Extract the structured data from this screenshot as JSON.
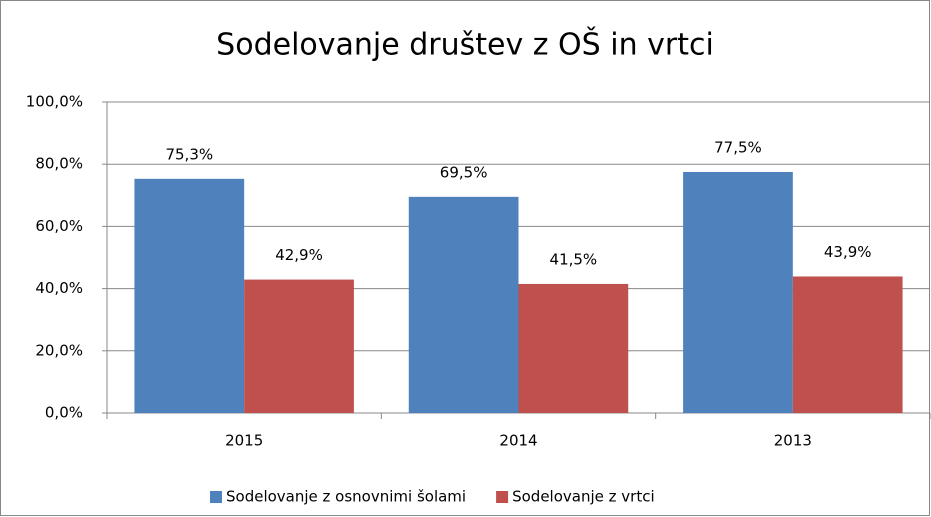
{
  "chart_data": {
    "type": "bar",
    "title": "Sodelovanje društev z OŠ in vrtci",
    "categories": [
      "2015",
      "2014",
      "2013"
    ],
    "series": [
      {
        "name": "Sodelovanje z osnovnimi šolami",
        "color": "#4f81bd",
        "values": [
          75.3,
          69.5,
          77.5
        ],
        "value_labels": [
          "75,3%",
          "69,5%",
          "77,5%"
        ]
      },
      {
        "name": "Sodelovanje z vrtci",
        "color": "#c0504d",
        "values": [
          42.9,
          41.5,
          43.9
        ],
        "value_labels": [
          "42,9%",
          "41,5%",
          "43,9%"
        ]
      }
    ],
    "ylim": [
      0,
      100
    ],
    "yticks": [
      {
        "value": 0,
        "label": "0,0%"
      },
      {
        "value": 20,
        "label": "20,0%"
      },
      {
        "value": 40,
        "label": "40,0%"
      },
      {
        "value": 60,
        "label": "60,0%"
      },
      {
        "value": 80,
        "label": "80,0%"
      },
      {
        "value": 100,
        "label": "100,0%"
      }
    ],
    "grid": true,
    "legend": "bottom"
  }
}
